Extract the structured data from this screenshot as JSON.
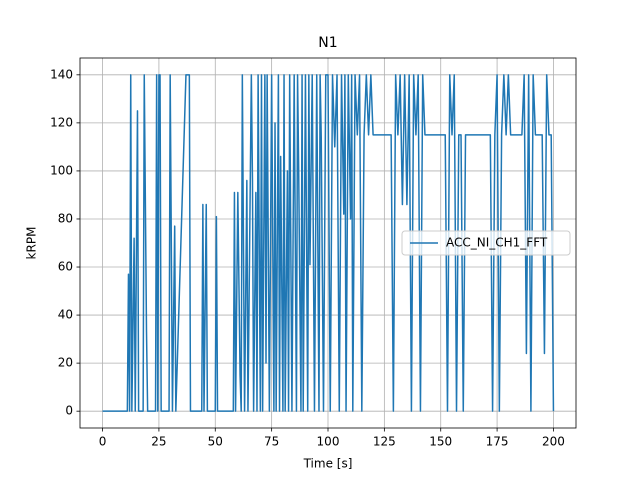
{
  "chart_data": {
    "type": "line",
    "title": "N1",
    "xlabel": "Time [s]",
    "ylabel": "kRPM",
    "x": [
      0,
      11,
      11.5,
      12,
      12.5,
      13,
      14,
      14.5,
      15.5,
      16,
      18,
      18.5,
      19.5,
      20,
      23.5,
      24,
      24.5,
      25,
      25.5,
      26,
      29.5,
      30,
      31,
      32,
      32.5,
      37,
      38.5,
      39,
      44,
      44.5,
      45,
      46,
      46.5,
      50,
      50.5,
      51,
      58,
      58.5,
      59,
      60,
      61,
      61.5,
      62,
      63,
      64,
      64.5,
      66,
      66.5,
      67,
      68,
      68.5,
      69,
      70,
      70.5,
      71,
      72,
      72.5,
      73,
      74,
      75,
      76,
      76.5,
      77,
      78,
      78.5,
      79,
      80,
      80.5,
      81,
      82,
      82.5,
      83,
      84,
      85,
      86,
      86.5,
      87,
      88,
      88.5,
      89,
      90,
      91,
      91.5,
      92,
      93,
      94,
      95,
      96,
      96.5,
      97,
      98,
      99,
      100,
      101,
      102,
      103,
      104,
      105,
      106,
      107,
      107.5,
      108,
      109,
      110,
      110.5,
      111,
      112,
      113,
      114,
      115,
      116,
      117,
      118,
      119,
      120,
      128,
      129,
      130,
      131,
      132,
      133,
      134,
      135,
      136,
      137,
      138,
      139,
      140,
      141,
      142,
      143,
      152,
      153,
      154,
      155,
      156,
      157,
      158,
      159,
      160,
      161,
      172,
      173,
      174,
      175,
      176,
      177,
      178,
      179,
      180,
      181,
      186,
      187,
      188,
      189,
      190,
      191,
      192,
      195,
      196,
      197,
      198,
      199,
      200
    ],
    "series": [
      {
        "name": "ACC_NI_CH1_FFT",
        "color": "#1f77b4",
        "values": [
          0,
          0,
          57,
          0,
          140,
          0,
          72,
          0,
          125,
          0,
          0,
          140,
          33,
          0,
          0,
          140,
          0,
          140,
          140,
          0,
          0,
          140,
          0,
          77,
          0,
          140,
          140,
          0,
          0,
          86,
          0,
          86,
          0,
          0,
          81,
          0,
          0,
          91,
          0,
          91,
          15,
          0,
          140,
          0,
          96,
          0,
          140,
          96,
          0,
          91,
          0,
          140,
          0,
          140,
          0,
          140,
          20,
          140,
          0,
          140,
          0,
          120,
          0,
          140,
          0,
          106,
          0,
          140,
          0,
          100,
          0,
          140,
          0,
          140,
          0,
          140,
          100,
          0,
          140,
          0,
          140,
          0,
          140,
          61,
          140,
          0,
          140,
          0,
          140,
          114,
          0,
          140,
          140,
          0,
          140,
          110,
          140,
          0,
          140,
          82,
          140,
          0,
          140,
          80,
          140,
          0,
          140,
          115,
          140,
          0,
          115,
          140,
          115,
          140,
          115,
          115,
          0,
          140,
          115,
          140,
          86,
          140,
          86,
          140,
          0,
          140,
          115,
          140,
          0,
          140,
          115,
          115,
          0,
          140,
          115,
          140,
          0,
          115,
          115,
          0,
          115,
          115,
          0,
          115,
          140,
          0,
          115,
          140,
          115,
          140,
          115,
          115,
          140,
          24,
          140,
          0,
          140,
          115,
          115,
          24,
          140,
          115,
          115,
          0
        ]
      }
    ],
    "xlim": [
      -10,
      210
    ],
    "ylim": [
      -7,
      147
    ],
    "xticks": [
      0,
      25,
      50,
      75,
      100,
      125,
      150,
      175,
      200
    ],
    "yticks": [
      0,
      20,
      40,
      60,
      80,
      100,
      120,
      140
    ],
    "grid": true,
    "legend": "center right"
  }
}
